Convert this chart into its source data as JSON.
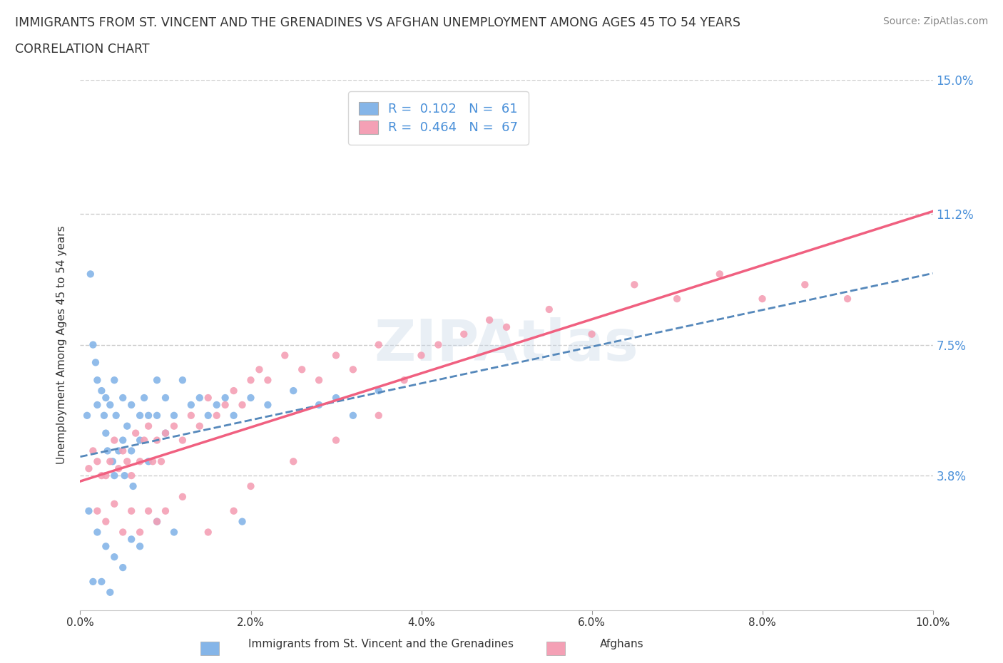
{
  "title_line1": "IMMIGRANTS FROM ST. VINCENT AND THE GRENADINES VS AFGHAN UNEMPLOYMENT AMONG AGES 45 TO 54 YEARS",
  "title_line2": "CORRELATION CHART",
  "source": "Source: ZipAtlas.com",
  "ylabel": "Unemployment Among Ages 45 to 54 years",
  "xlim": [
    0.0,
    0.1
  ],
  "ylim": [
    0.0,
    0.15
  ],
  "ytick_vals": [
    0.038,
    0.075,
    0.112,
    0.15
  ],
  "ytick_labels": [
    "3.8%",
    "7.5%",
    "11.2%",
    "15.0%"
  ],
  "xtick_vals": [
    0.0,
    0.02,
    0.04,
    0.06,
    0.08,
    0.1
  ],
  "xtick_labels": [
    "0.0%",
    "2.0%",
    "4.0%",
    "6.0%",
    "8.0%",
    "10.0%"
  ],
  "blue_color": "#85b5e8",
  "pink_color": "#f4a0b5",
  "blue_line_color": "#5588bb",
  "pink_line_color": "#f06080",
  "grid_color": "#cccccc",
  "background_color": "#ffffff",
  "watermark_color": "#c8d8e8",
  "right_tick_color": "#4a90d9",
  "legend_text_color": "#4a90d9",
  "legend_label_color": "#333333"
}
